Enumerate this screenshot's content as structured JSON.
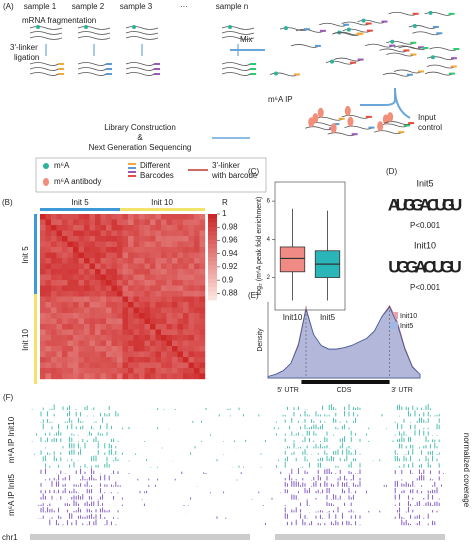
{
  "panels": {
    "a": "(A)",
    "b": "(B)",
    "c": "(C)",
    "d": "(D)",
    "e": "(E)",
    "f": "(F)"
  },
  "workflow": {
    "samples": [
      "sample 1",
      "sample 2",
      "sample 3",
      "···",
      "sample n"
    ],
    "fragmentation": "mRNA fragmentation",
    "ligation": [
      "3'-linker",
      "ligation"
    ],
    "mix": "Mix",
    "input": [
      "Input",
      "control"
    ],
    "ip": "m⁶A IP",
    "library": [
      "Library Construction",
      "&",
      "Next Generation Sequencing"
    ],
    "legend": {
      "m6a": "m⁶A",
      "antibody": "m⁶A antibody",
      "barcodes": [
        "Different",
        "Barcodes"
      ],
      "linker": [
        "3'-linker",
        "with barcode"
      ]
    }
  },
  "heatmap": {
    "top": [
      "Init 5",
      "Init 10"
    ],
    "left": [
      "Init 5",
      "Init 10"
    ],
    "colorbar_title": "R",
    "clim": [
      0.87,
      1
    ],
    "cticks": [
      1,
      0.98,
      0.96,
      0.94,
      0.92,
      0.9,
      0.88
    ]
  },
  "motifs": [
    {
      "name": "Init5",
      "letters": [
        "A",
        "U",
        "G",
        "G",
        "A",
        "C",
        "U",
        "G",
        "U"
      ],
      "p": "P<0.001"
    },
    {
      "name": "Init10",
      "letters": [
        "U",
        "G",
        "G",
        "A",
        "C",
        "U",
        "G",
        "U"
      ],
      "p": "P<0.001"
    }
  ],
  "tracks": {
    "labels": [
      "m⁶A IP Init10",
      "m⁶A IP Init5"
    ],
    "right": "normalized coverage",
    "chrom": "chr1"
  },
  "chart_data": [
    {
      "type": "box",
      "ylabel": "log₂ (m⁶A peak fold enrichment)",
      "categories": [
        "Init10",
        "Init5"
      ],
      "colors": [
        "#f08a84",
        "#2ab5b9"
      ],
      "ylim": [
        0.3,
        7
      ],
      "yticks": [
        2,
        4,
        6
      ],
      "series": [
        {
          "min": 0.8,
          "q1": 2.3,
          "median": 3.0,
          "q3": 3.6,
          "max": 5.6
        },
        {
          "min": 0.8,
          "q1": 2.0,
          "median": 2.7,
          "q3": 3.4,
          "max": 5.5
        }
      ]
    },
    {
      "type": "area",
      "ylabel": "Density",
      "regions": [
        "5' UTR",
        "CDS",
        "3' UTR"
      ],
      "xlim": [
        0,
        100
      ],
      "ylim": [
        0,
        1.05
      ],
      "x": [
        0,
        5,
        10,
        15,
        20,
        25,
        30,
        35,
        40,
        45,
        50,
        55,
        60,
        65,
        70,
        75,
        80,
        85,
        90,
        95,
        100
      ],
      "series": [
        {
          "name": "Init10",
          "color": "#e9a3ab",
          "values": [
            0.02,
            0.05,
            0.1,
            0.2,
            0.47,
            0.97,
            0.6,
            0.44,
            0.39,
            0.39,
            0.41,
            0.44,
            0.49,
            0.54,
            0.64,
            0.85,
            1.0,
            0.78,
            0.42,
            0.16,
            0.05
          ]
        },
        {
          "name": "Init5",
          "color": "#9fb7e3",
          "values": [
            0.02,
            0.05,
            0.1,
            0.2,
            0.45,
            0.95,
            0.6,
            0.45,
            0.4,
            0.4,
            0.42,
            0.45,
            0.5,
            0.55,
            0.65,
            0.85,
            0.98,
            0.75,
            0.4,
            0.15,
            0.05
          ]
        }
      ]
    }
  ]
}
